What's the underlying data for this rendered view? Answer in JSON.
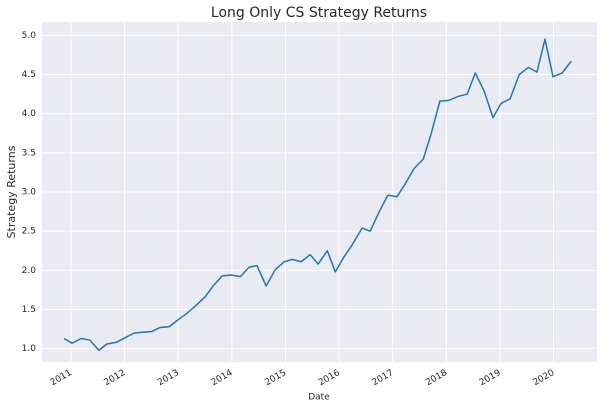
{
  "chart_data": {
    "type": "line",
    "title": "Long Only CS Strategy Returns",
    "x_label": "Date",
    "y_label": "Strategy Returns",
    "x": [
      2010.87,
      2011.02,
      2011.19,
      2011.35,
      2011.52,
      2011.67,
      2011.84,
      2012.01,
      2012.18,
      2012.34,
      2012.51,
      2012.66,
      2012.83,
      2013.0,
      2013.16,
      2013.33,
      2013.5,
      2013.65,
      2013.82,
      2013.99,
      2014.16,
      2014.32,
      2014.47,
      2014.64,
      2014.81,
      2014.98,
      2015.13,
      2015.29,
      2015.46,
      2015.61,
      2015.78,
      2015.93,
      2016.09,
      2016.24,
      2016.43,
      2016.58,
      2016.75,
      2016.91,
      2017.08,
      2017.23,
      2017.4,
      2017.57,
      2017.72,
      2017.88,
      2018.05,
      2018.22,
      2018.39,
      2018.54,
      2018.71,
      2018.87,
      2019.02,
      2019.19,
      2019.36,
      2019.53,
      2019.69,
      2019.84,
      2019.99,
      2020.16,
      2020.33
    ],
    "series": [
      {
        "name": "Strategy Returns",
        "color": "#1f77b4",
        "values": [
          1.13,
          1.07,
          1.13,
          1.11,
          0.98,
          1.06,
          1.08,
          1.14,
          1.2,
          1.21,
          1.22,
          1.27,
          1.28,
          1.37,
          1.45,
          1.55,
          1.66,
          1.8,
          1.93,
          1.94,
          1.92,
          2.04,
          2.06,
          1.8,
          2.01,
          2.11,
          2.14,
          2.11,
          2.2,
          2.08,
          2.25,
          1.98,
          2.17,
          2.32,
          2.54,
          2.5,
          2.75,
          2.96,
          2.94,
          3.1,
          3.3,
          3.42,
          3.75,
          4.16,
          4.17,
          4.22,
          4.25,
          4.52,
          4.28,
          3.95,
          4.13,
          4.19,
          4.5,
          4.59,
          4.53,
          4.95,
          4.47,
          4.52,
          4.67
        ]
      }
    ],
    "xlim": [
      2010.46,
      2020.81
    ],
    "xticks": [
      2011,
      2012,
      2013,
      2014,
      2015,
      2016,
      2017,
      2018,
      2019,
      2020
    ],
    "ylim": [
      0.83,
      5.17
    ],
    "yticks": [
      {
        "value": 1,
        "label": "1.0"
      },
      1.5,
      {
        "value": 2,
        "label": "2.0"
      },
      2.5,
      {
        "value": 3,
        "label": "3.0"
      },
      3.5,
      {
        "value": 4,
        "label": "4.0"
      },
      4.5,
      {
        "value": 5,
        "label": "5.0"
      }
    ],
    "grid": true
  }
}
